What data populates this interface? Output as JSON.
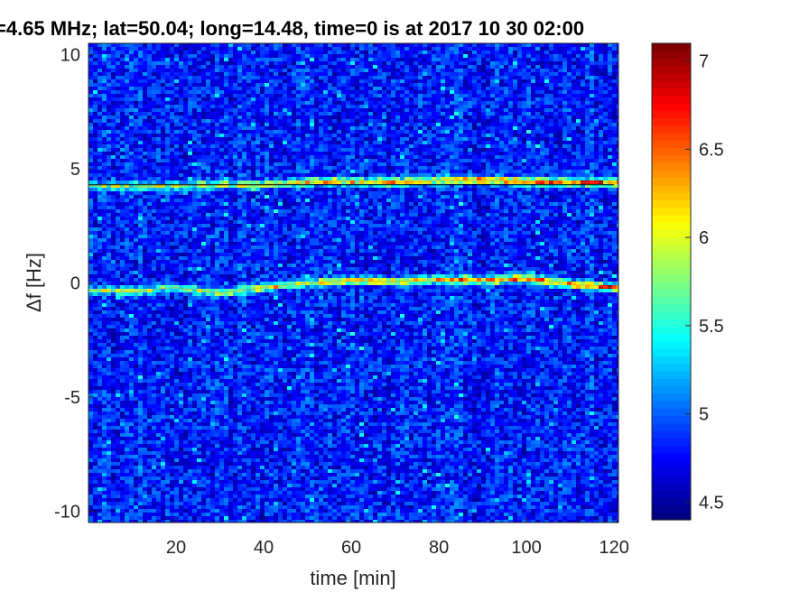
{
  "chart_data": {
    "type": "heatmap",
    "title": "=4.65 MHz;  lat=50.04; long=14.48, time=0 is at 2017 10 30 02:00",
    "xlabel": "time [min]",
    "ylabel": "Δf [Hz]",
    "xlim": [
      0,
      121
    ],
    "ylim": [
      -10.5,
      10.5
    ],
    "xticks": [
      20,
      40,
      60,
      80,
      100,
      120
    ],
    "xtick_labels": [
      "20",
      "40",
      "60",
      "80",
      "100",
      "120"
    ],
    "yticks": [
      10,
      5,
      0,
      -5,
      -10
    ],
    "ytick_labels": [
      "10",
      "5",
      "0",
      "-5",
      "-10"
    ],
    "colorbar": {
      "min": 4.4,
      "max": 7.1,
      "ticks": [
        7,
        6.5,
        6,
        5.5,
        5,
        4.5
      ],
      "tick_labels": [
        "7",
        "6.5",
        "6",
        "5.5",
        "5",
        "4.5"
      ],
      "colormap": "jet"
    },
    "series": [
      {
        "x": [
          0,
          10,
          20,
          30,
          40,
          50,
          60,
          70,
          80,
          90,
          100,
          110,
          120
        ],
        "y": [
          4.25,
          4.2,
          4.25,
          4.3,
          4.3,
          4.4,
          4.45,
          4.4,
          4.5,
          4.5,
          4.45,
          4.4,
          4.4
        ]
      },
      {
        "x": [
          0,
          10,
          20,
          30,
          40,
          50,
          60,
          70,
          80,
          90,
          100,
          110,
          120
        ],
        "y": [
          -0.3,
          -0.4,
          -0.2,
          -0.45,
          -0.2,
          0,
          0.1,
          0.05,
          0.15,
          0.1,
          0.2,
          -0.05,
          -0.2
        ]
      },
      {
        "x": [
          0,
          20,
          40,
          60,
          80,
          100,
          120
        ],
        "y": [
          4.3,
          4.3,
          4.3,
          4.3,
          4.3,
          4.3,
          4.3
        ],
        "style": "thin black line"
      }
    ],
    "background_level": 4.8,
    "grid": false
  }
}
